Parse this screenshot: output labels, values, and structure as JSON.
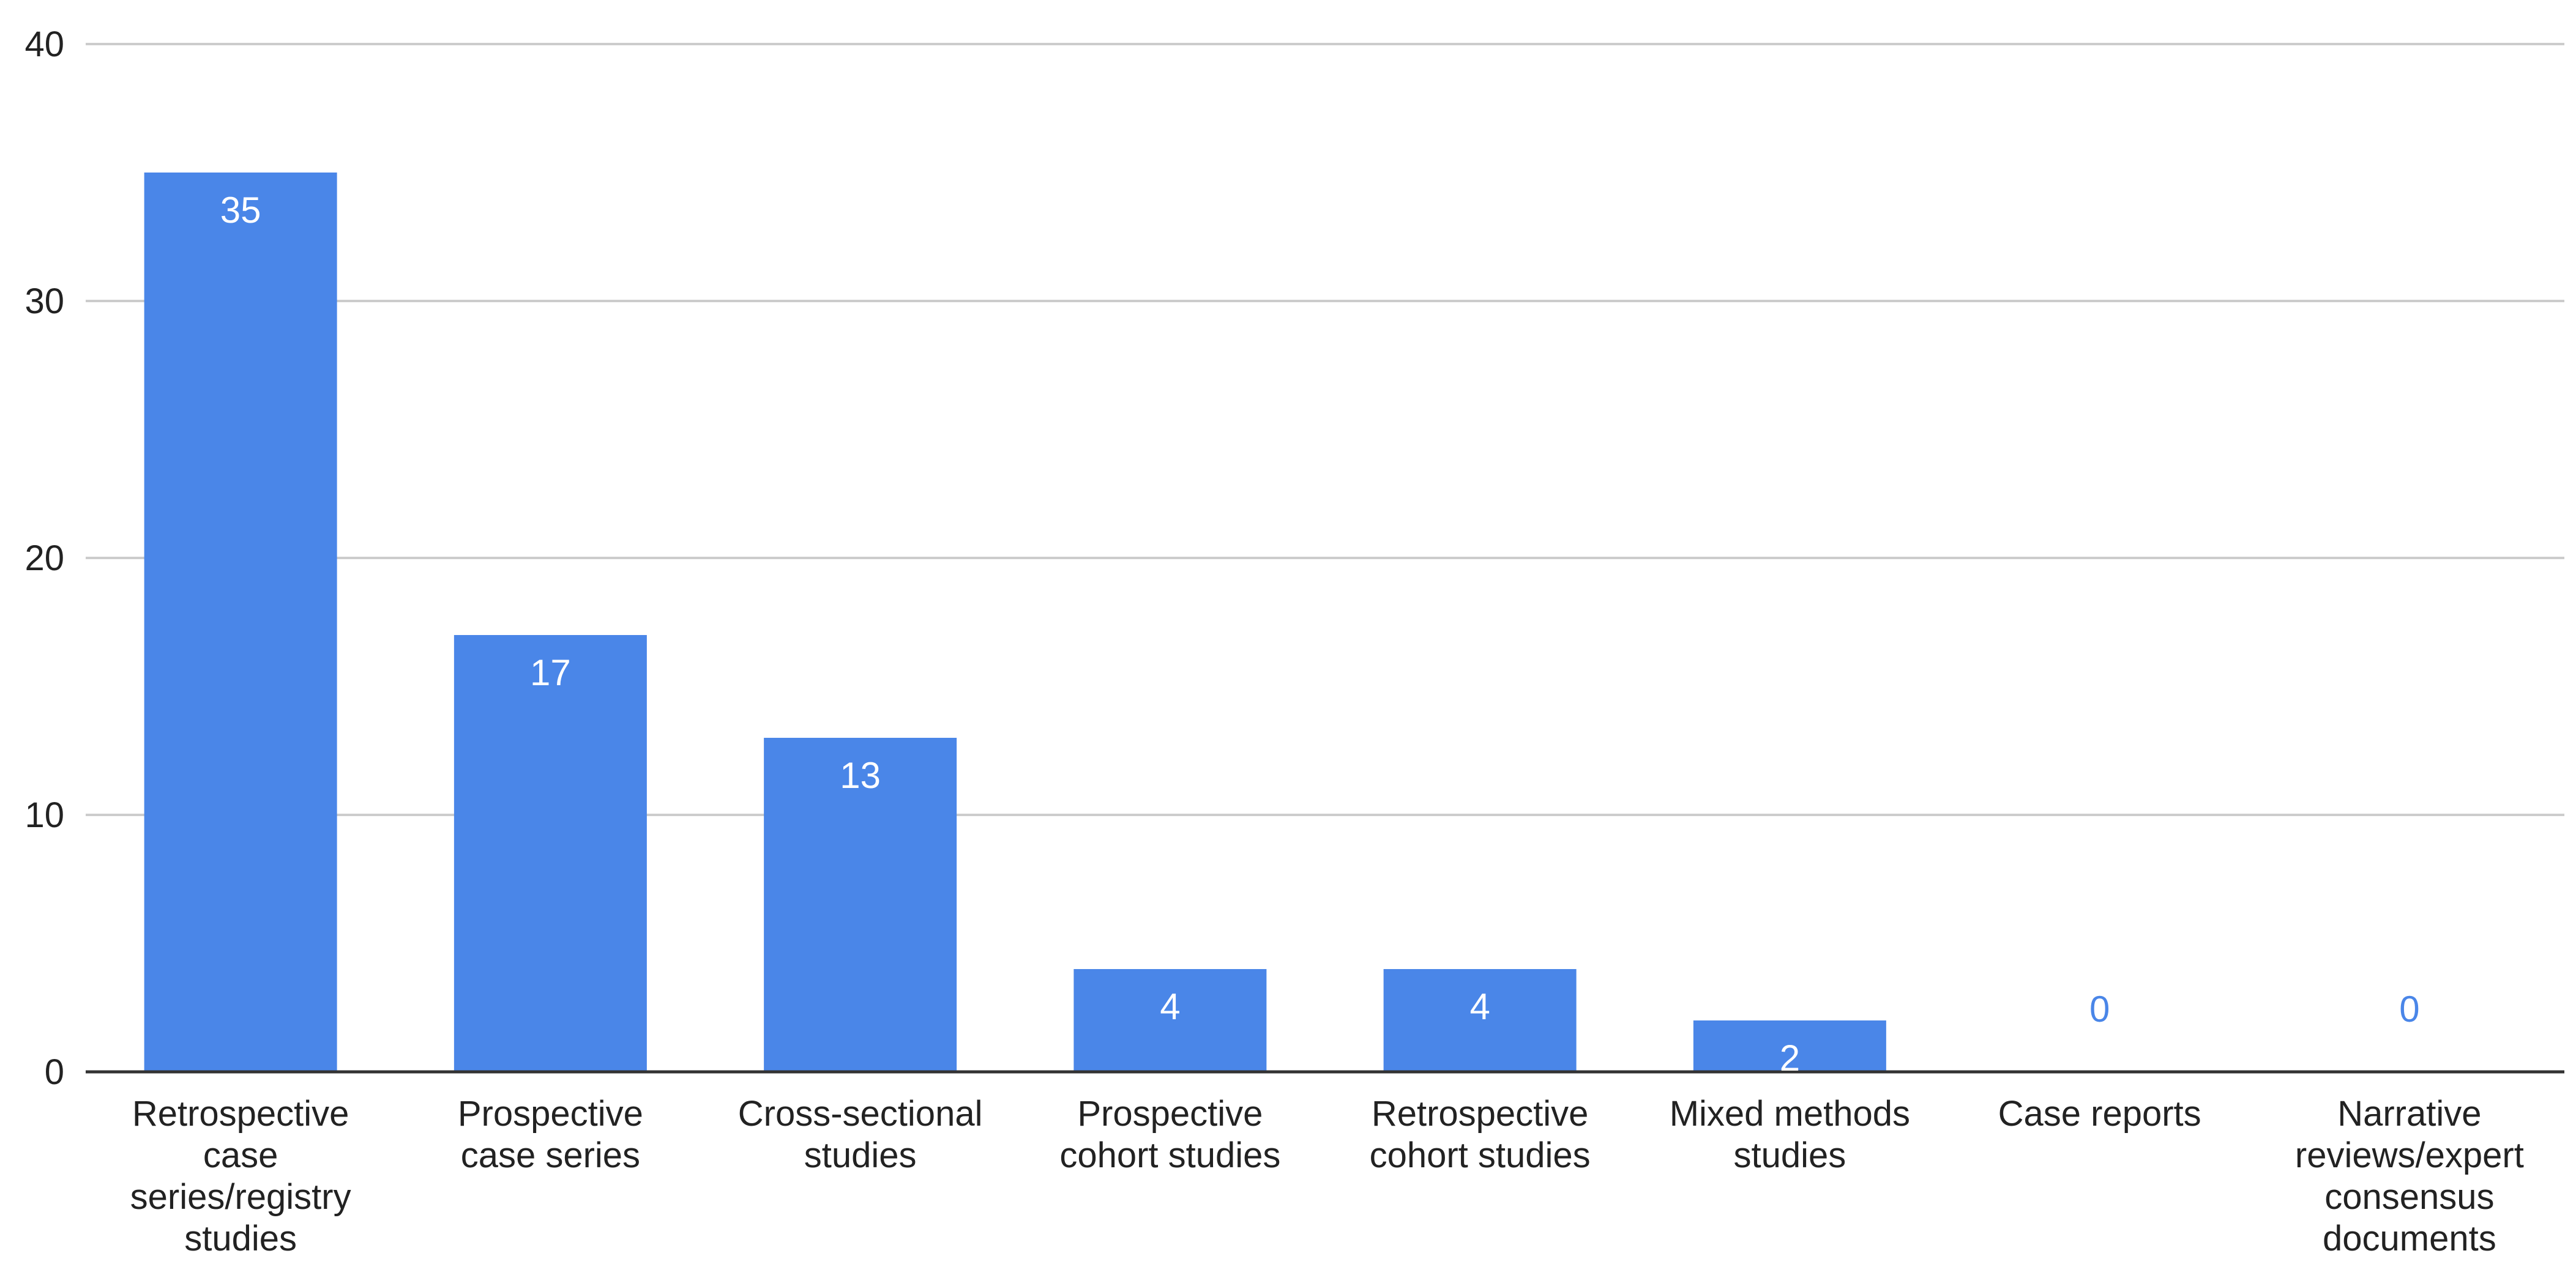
{
  "chart_data": {
    "type": "bar",
    "title": "",
    "xlabel": "",
    "ylabel": "",
    "categories": [
      "Retrospective case series/registry studies",
      "Prospective case series",
      "Cross-sectional studies",
      "Prospective cohort studies",
      "Retrospective cohort studies",
      "Mixed methods studies",
      "Case reports",
      "Narrative reviews/expert consensus documents"
    ],
    "category_label_lines": [
      [
        "Retrospective",
        "case",
        "series/registry",
        "studies"
      ],
      [
        "Prospective",
        "case series"
      ],
      [
        "Cross-sectional",
        "studies"
      ],
      [
        "Prospective",
        "cohort studies"
      ],
      [
        "Retrospective",
        "cohort studies"
      ],
      [
        "Mixed methods",
        "studies"
      ],
      [
        "Case reports"
      ],
      [
        "Narrative",
        "reviews/expert",
        "consensus",
        "documents"
      ]
    ],
    "values": [
      35,
      17,
      13,
      4,
      4,
      2,
      0,
      0
    ],
    "ylim": [
      0,
      40
    ],
    "yticks": [
      0,
      10,
      20,
      30,
      40
    ],
    "grid": true,
    "data_labels": true,
    "colors": {
      "bar": "#4a86e8",
      "label_inside": "#ffffff",
      "label_outside": "#4a86e8",
      "grid": "#cccccc",
      "axis": "#333333",
      "text": "#222222"
    }
  }
}
